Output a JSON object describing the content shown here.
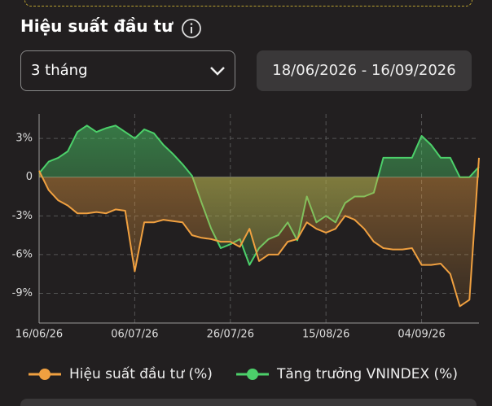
{
  "header": {
    "title": "Hiệu suất đầu tư"
  },
  "period_select": {
    "label": "3 tháng"
  },
  "date_range": {
    "label": "18/06/2026 - 16/09/2026"
  },
  "chart_data": {
    "type": "line",
    "x": [
      "16/06/26",
      "18/06/26",
      "20/06/26",
      "22/06/26",
      "24/06/26",
      "26/06/26",
      "28/06/26",
      "30/06/26",
      "02/07/26",
      "04/07/26",
      "06/07/26",
      "08/07/26",
      "10/07/26",
      "12/07/26",
      "14/07/26",
      "16/07/26",
      "18/07/26",
      "20/07/26",
      "22/07/26",
      "24/07/26",
      "26/07/26",
      "28/07/26",
      "30/07/26",
      "01/08/26",
      "03/08/26",
      "05/08/26",
      "07/08/26",
      "09/08/26",
      "11/08/26",
      "13/08/26",
      "15/08/26",
      "17/08/26",
      "19/08/26",
      "21/08/26",
      "23/08/26",
      "25/08/26",
      "27/08/26",
      "29/08/26",
      "31/08/26",
      "02/09/26",
      "04/09/26",
      "06/09/26",
      "08/09/26",
      "10/09/26",
      "12/09/26",
      "14/09/26",
      "16/09/26"
    ],
    "series": [
      {
        "name": "Hiệu suất đầu tư (%)",
        "color": "#f0a040",
        "values": [
          0.5,
          -1,
          -1.8,
          -2.2,
          -2.8,
          -2.8,
          -2.7,
          -2.8,
          -2.5,
          -2.6,
          -7.3,
          -3.5,
          -3.5,
          -3.3,
          -3.4,
          -3.5,
          -4.5,
          -4.7,
          -4.8,
          -5,
          -5,
          -5.4,
          -4,
          -6.5,
          -6,
          -6,
          -5,
          -4.8,
          -3.5,
          -4,
          -4.3,
          -4,
          -3,
          -3.3,
          -4,
          -5,
          -5.5,
          -5.6,
          -5.6,
          -5.5,
          -6.8,
          -6.8,
          -6.7,
          -7.5,
          -10,
          -9.5,
          1.5
        ]
      },
      {
        "name": "Tăng trưởng VNINDEX (%)",
        "color": "#4cd06a",
        "values": [
          0.3,
          1.2,
          1.5,
          2,
          3.5,
          4,
          3.5,
          3.8,
          4,
          3.5,
          3,
          3.7,
          3.4,
          2.5,
          1.8,
          1,
          0.1,
          -2,
          -4,
          -5.5,
          -5.2,
          -4.8,
          -6.8,
          -5.5,
          -4.8,
          -4.5,
          -3.5,
          -4.9,
          -1.5,
          -3.5,
          -3,
          -3.5,
          -2,
          -1.5,
          -1.5,
          -1.2,
          1.5,
          1.5,
          1.5,
          1.5,
          3.2,
          2.5,
          1.5,
          1.5,
          0,
          0,
          0.8
        ]
      }
    ],
    "xticks": [
      "16/06/26",
      "06/07/26",
      "26/07/26",
      "15/08/26",
      "04/09/26"
    ],
    "ylim": [
      -11.3,
      4.9
    ],
    "yticks": [
      {
        "value": 3,
        "label": "3%"
      },
      0,
      {
        "value": -3,
        "label": "-3%"
      },
      {
        "value": -6,
        "label": "-6%"
      },
      {
        "value": -9,
        "label": "-9%"
      }
    ],
    "grid": true
  }
}
